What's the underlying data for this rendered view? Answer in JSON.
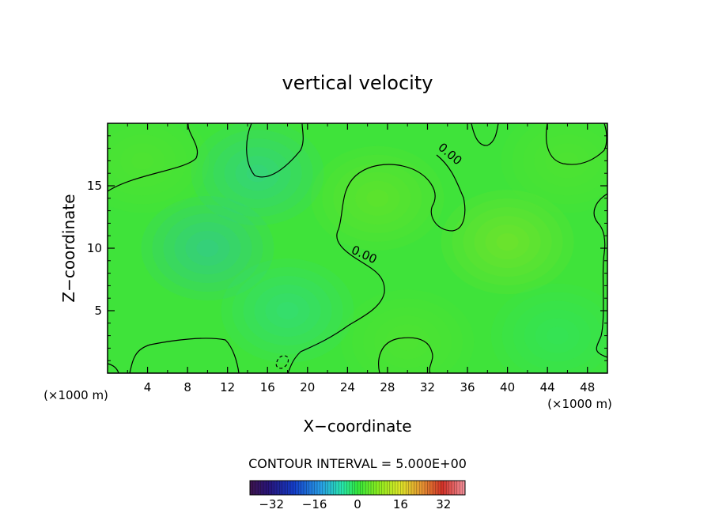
{
  "chart_data": {
    "type": "heatmap",
    "title": "vertical velocity",
    "xlabel": "X−coordinate",
    "ylabel": "Z−coordinate",
    "x_unit_left": "(×1000 m)",
    "x_unit_right": "(×1000 m)",
    "xlim": [
      0,
      50
    ],
    "ylim": [
      0,
      20
    ],
    "x_ticks": [
      4,
      8,
      12,
      16,
      20,
      24,
      28,
      32,
      36,
      40,
      44,
      48
    ],
    "x_tick_labels": [
      "4",
      "8",
      "12",
      "16",
      "20",
      "24",
      "28",
      "32",
      "36",
      "40",
      "44",
      "48"
    ],
    "y_ticks": [
      5,
      10,
      15
    ],
    "y_tick_labels": [
      "5",
      "10",
      "15"
    ],
    "contour_interval_text": "CONTOUR INTERVAL = 5.000E+00",
    "contour_labels": [
      {
        "text": "0.00",
        "x": 34.0,
        "y": 17.3,
        "angle": 40
      },
      {
        "text": "0.00",
        "x": 25.5,
        "y": 9.2,
        "angle": 25
      }
    ],
    "field_blobs": [
      {
        "x": 10,
        "y": 10,
        "value": -3.5
      },
      {
        "x": 15,
        "y": 16,
        "value": -3.0
      },
      {
        "x": 18,
        "y": 5,
        "value": -2.0
      },
      {
        "x": 40,
        "y": 10.5,
        "value": 3.5
      },
      {
        "x": 27,
        "y": 14,
        "value": 2.5
      },
      {
        "x": 3.5,
        "y": 17,
        "value": 1.5
      },
      {
        "x": 46,
        "y": 17,
        "value": 1.5
      },
      {
        "x": 30,
        "y": 2.5,
        "value": 1.5
      },
      {
        "x": 45,
        "y": 3,
        "value": -1.0
      }
    ],
    "colorbar": {
      "min": -40,
      "max": 40,
      "ticks": [
        -32,
        -16,
        0,
        16,
        32
      ],
      "tick_labels": [
        "−32",
        "−16",
        "0",
        "16",
        "32"
      ]
    }
  }
}
